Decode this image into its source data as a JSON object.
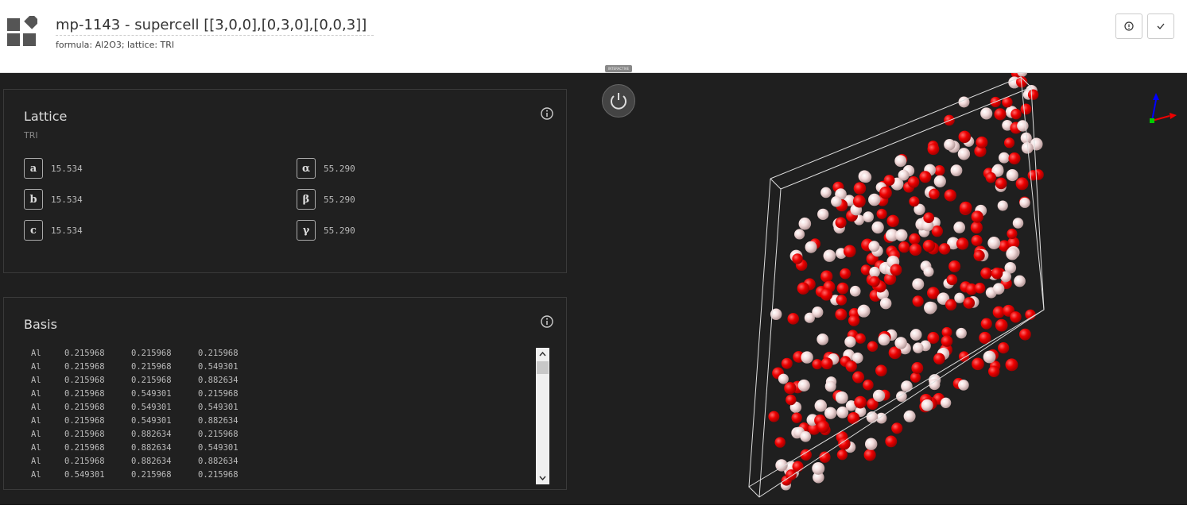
{
  "header": {
    "title": "mp-1143 - supercell [[3,0,0],[0,3,0],[0,0,3]]",
    "subtitle": "formula: Al2O3; lattice: TRI"
  },
  "viewer": {
    "tag": "INTERACTIVE"
  },
  "lattice": {
    "title": "Lattice",
    "subtitle": "TRI",
    "params": [
      [
        "a",
        "15.534"
      ],
      [
        "b",
        "15.534"
      ],
      [
        "c",
        "15.534"
      ],
      [
        "α",
        "55.290"
      ],
      [
        "β",
        "55.290"
      ],
      [
        "γ",
        "55.290"
      ]
    ]
  },
  "basis": {
    "title": "Basis",
    "rows": [
      [
        "Al",
        "0.215968",
        "0.215968",
        "0.215968"
      ],
      [
        "Al",
        "0.215968",
        "0.215968",
        "0.549301"
      ],
      [
        "Al",
        "0.215968",
        "0.215968",
        "0.882634"
      ],
      [
        "Al",
        "0.215968",
        "0.549301",
        "0.215968"
      ],
      [
        "Al",
        "0.215968",
        "0.549301",
        "0.549301"
      ],
      [
        "Al",
        "0.215968",
        "0.549301",
        "0.882634"
      ],
      [
        "Al",
        "0.215968",
        "0.882634",
        "0.215968"
      ],
      [
        "Al",
        "0.215968",
        "0.882634",
        "0.549301"
      ],
      [
        "Al",
        "0.215968",
        "0.882634",
        "0.882634"
      ],
      [
        "Al",
        "0.549301",
        "0.215968",
        "0.215968"
      ]
    ]
  }
}
